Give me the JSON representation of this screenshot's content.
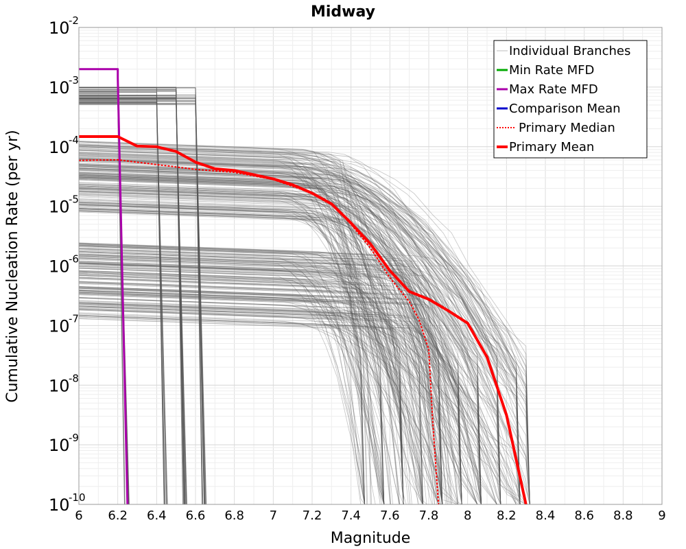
{
  "chart_data": {
    "type": "line",
    "title": "Midway",
    "xlabel": "Magnitude",
    "ylabel": "Cumulative Nucleation Rate (per yr)",
    "xlim": [
      6,
      9
    ],
    "ylim_log10": [
      -10,
      -2
    ],
    "y_scale": "log",
    "grid": true,
    "legend_position": "top-right",
    "x_ticks": [
      "6",
      "6.2",
      "6.4",
      "6.6",
      "6.8",
      "7",
      "7.2",
      "7.4",
      "7.6",
      "7.8",
      "8",
      "8.2",
      "8.4",
      "8.6",
      "8.8",
      "9"
    ],
    "y_ticks": [
      {
        "base": "10",
        "exp": "-10",
        "value": -10
      },
      {
        "base": "10",
        "exp": "-9",
        "value": -9
      },
      {
        "base": "10",
        "exp": "-8",
        "value": -8
      },
      {
        "base": "10",
        "exp": "-7",
        "value": -7
      },
      {
        "base": "10",
        "exp": "-6",
        "value": -6
      },
      {
        "base": "10",
        "exp": "-5",
        "value": -5
      },
      {
        "base": "10",
        "exp": "-4",
        "value": -4
      },
      {
        "base": "10",
        "exp": "-3",
        "value": -3
      },
      {
        "base": "10",
        "exp": "-2",
        "value": -2
      }
    ],
    "legend": [
      {
        "label": "Individual Branches",
        "color": "#bbbbbb",
        "style": "thin"
      },
      {
        "label": "Min Rate MFD",
        "color": "#00aa00",
        "style": "solid"
      },
      {
        "label": "Max Rate MFD",
        "color": "#aa00aa",
        "style": "solid"
      },
      {
        "label": "Comparison Mean",
        "color": "#0000cc",
        "style": "solid"
      },
      {
        "label": "Primary Median",
        "color": "#ff0000",
        "style": "dotted"
      },
      {
        "label": "Primary Mean",
        "color": "#ff0000",
        "style": "thick"
      }
    ],
    "series": [
      {
        "name": "Max Rate MFD",
        "color": "#aa00aa",
        "x": [
          6.0,
          6.2,
          6.2,
          6.25
        ],
        "log10_y": [
          -2.7,
          -2.7,
          -2.85,
          -10.0
        ]
      },
      {
        "name": "Comparison Mean",
        "color": "#0000cc",
        "x": [
          6.0,
          6.2,
          6.3,
          6.4,
          6.5,
          6.6,
          6.7,
          6.8,
          6.9,
          7.0,
          7.1,
          7.2,
          7.3,
          7.4,
          7.5,
          7.6,
          7.7,
          7.8,
          7.9,
          8.0,
          8.1,
          8.2,
          8.3
        ],
        "log10_y": [
          -3.83,
          -3.83,
          -3.99,
          -4.0,
          -4.08,
          -4.26,
          -4.37,
          -4.4,
          -4.47,
          -4.54,
          -4.64,
          -4.78,
          -4.96,
          -5.28,
          -5.63,
          -6.08,
          -6.43,
          -6.56,
          -6.75,
          -6.96,
          -7.53,
          -8.5,
          -10.0
        ]
      },
      {
        "name": "Primary Median",
        "color": "#ff0000",
        "x": [
          6.0,
          6.2,
          6.4,
          6.6,
          6.8,
          7.0,
          7.2,
          7.3,
          7.4,
          7.5,
          7.6,
          7.7,
          7.75,
          7.8,
          7.82,
          7.85
        ],
        "log10_y": [
          -4.23,
          -4.22,
          -4.3,
          -4.38,
          -4.43,
          -4.55,
          -4.78,
          -4.96,
          -5.3,
          -5.7,
          -6.2,
          -6.6,
          -6.9,
          -7.4,
          -8.6,
          -10.0
        ]
      },
      {
        "name": "Primary Mean",
        "color": "#ff0000",
        "x": [
          6.0,
          6.2,
          6.3,
          6.4,
          6.5,
          6.6,
          6.7,
          6.8,
          6.9,
          7.0,
          7.1,
          7.2,
          7.3,
          7.4,
          7.5,
          7.6,
          7.7,
          7.8,
          7.9,
          8.0,
          8.1,
          8.2,
          8.3
        ],
        "log10_y": [
          -3.83,
          -3.83,
          -3.99,
          -4.0,
          -4.08,
          -4.26,
          -4.37,
          -4.4,
          -4.47,
          -4.54,
          -4.64,
          -4.78,
          -4.96,
          -5.28,
          -5.63,
          -6.08,
          -6.43,
          -6.56,
          -6.75,
          -6.96,
          -7.53,
          -8.5,
          -10.0
        ]
      }
    ],
    "branch_count": 400
  }
}
